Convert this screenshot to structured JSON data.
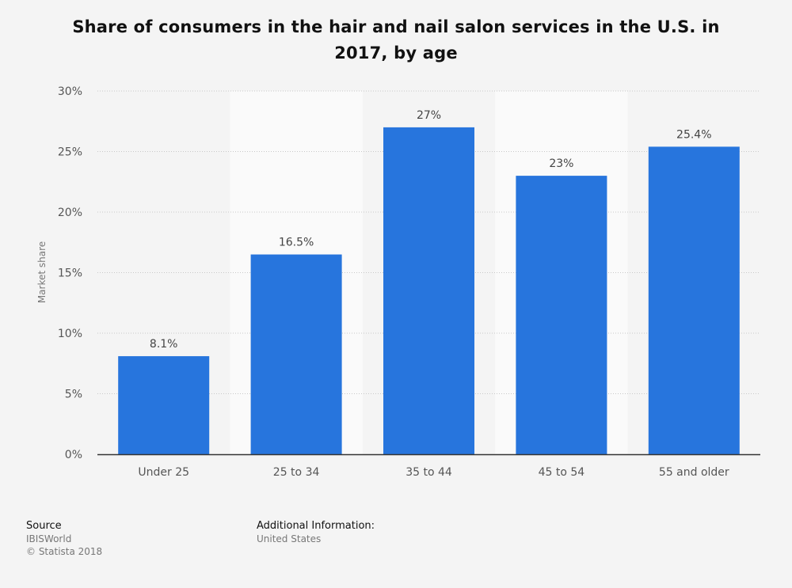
{
  "chart_data": {
    "type": "bar",
    "title": "Share of consumers in the hair and nail salon services in the U.S. in 2017, by age",
    "xlabel": "",
    "ylabel": "Market share",
    "categories": [
      "Under 25",
      "25 to 34",
      "35 to 44",
      "45 to 54",
      "55 and older"
    ],
    "values": [
      8.1,
      16.5,
      27,
      23,
      25.4
    ],
    "data_labels": [
      "8.1%",
      "16.5%",
      "27%",
      "23%",
      "25.4%"
    ],
    "ylim": [
      0,
      30
    ],
    "yticks": [
      0,
      5,
      10,
      15,
      20,
      25,
      30
    ],
    "ytick_labels": [
      "0%",
      "5%",
      "10%",
      "15%",
      "20%",
      "25%",
      "30%"
    ],
    "grid": "horizontal dotted",
    "legend": "none",
    "colors": {
      "bar": "#2775dd",
      "band": "#fafafa",
      "background": "#f4f4f4"
    }
  },
  "footer": {
    "source_label": "Source",
    "source_name": "IBISWorld",
    "copyright": "© Statista 2018",
    "additional_label": "Additional Information:",
    "additional_value": "United States"
  }
}
